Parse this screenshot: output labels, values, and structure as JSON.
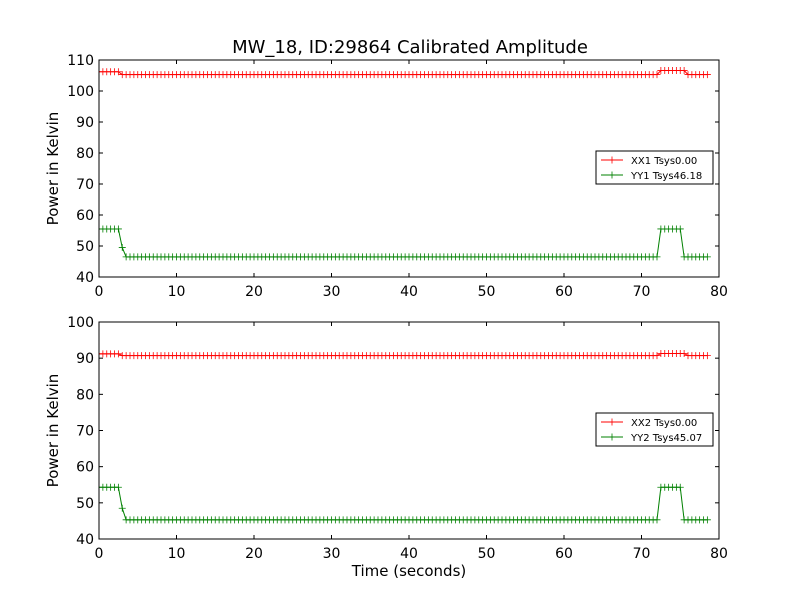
{
  "figure": {
    "title": "MW_18, ID:29864 Calibrated Amplitude"
  },
  "colors": {
    "xx": "#ff0000",
    "yy": "#008000",
    "axes": "#000000",
    "background": "#ffffff"
  },
  "chart_data": [
    {
      "type": "line",
      "title": "MW_18, ID:29864 Calibrated Amplitude",
      "xlabel": "",
      "ylabel": "Power in Kelvin",
      "xlim": [
        0,
        80
      ],
      "ylim": [
        40,
        110
      ],
      "xticks": [
        0,
        10,
        20,
        30,
        40,
        50,
        60,
        70,
        80
      ],
      "yticks": [
        40,
        50,
        60,
        70,
        80,
        90,
        100,
        110
      ],
      "grid": false,
      "legend_position": "right",
      "marker": "plus",
      "time_step": 0.5,
      "time_end": 78.5,
      "series": [
        {
          "name": "XX1 Tsys0.00",
          "color": "#ff0000",
          "segments": [
            {
              "from": 0,
              "to": 2.5,
              "value": 106.2
            },
            {
              "from": 3.0,
              "to": 72.0,
              "value": 105.3
            },
            {
              "from": 72.5,
              "to": 75.5,
              "value": 106.6
            },
            {
              "from": 76.0,
              "to": 78.5,
              "value": 105.3
            }
          ]
        },
        {
          "name": "YY1 Tsys46.18",
          "color": "#008000",
          "segments": [
            {
              "from": 0,
              "to": 2.5,
              "value": 55.5
            },
            {
              "from": 3.0,
              "to": 3.0,
              "value": 49.5
            },
            {
              "from": 3.5,
              "to": 72.0,
              "value": 46.5
            },
            {
              "from": 72.5,
              "to": 75.0,
              "value": 55.5
            },
            {
              "from": 75.5,
              "to": 78.5,
              "value": 46.5
            }
          ]
        }
      ]
    },
    {
      "type": "line",
      "title": "",
      "xlabel": "Time (seconds)",
      "ylabel": "Power in Kelvin",
      "xlim": [
        0,
        80
      ],
      "ylim": [
        40,
        100
      ],
      "xticks": [
        0,
        10,
        20,
        30,
        40,
        50,
        60,
        70,
        80
      ],
      "yticks": [
        40,
        50,
        60,
        70,
        80,
        90,
        100
      ],
      "grid": false,
      "legend_position": "right",
      "marker": "plus",
      "time_step": 0.5,
      "time_end": 78.5,
      "series": [
        {
          "name": "XX2 Tsys0.00",
          "color": "#ff0000",
          "segments": [
            {
              "from": 0,
              "to": 2.5,
              "value": 91.2
            },
            {
              "from": 3.0,
              "to": 72.0,
              "value": 90.7
            },
            {
              "from": 72.5,
              "to": 75.5,
              "value": 91.3
            },
            {
              "from": 76.0,
              "to": 78.5,
              "value": 90.7
            }
          ]
        },
        {
          "name": "YY2 Tsys45.07",
          "color": "#008000",
          "segments": [
            {
              "from": 0,
              "to": 2.5,
              "value": 54.3
            },
            {
              "from": 3.0,
              "to": 3.0,
              "value": 48.5
            },
            {
              "from": 3.5,
              "to": 72.0,
              "value": 45.3
            },
            {
              "from": 72.5,
              "to": 75.0,
              "value": 54.3
            },
            {
              "from": 75.5,
              "to": 78.5,
              "value": 45.3
            }
          ]
        }
      ]
    }
  ]
}
